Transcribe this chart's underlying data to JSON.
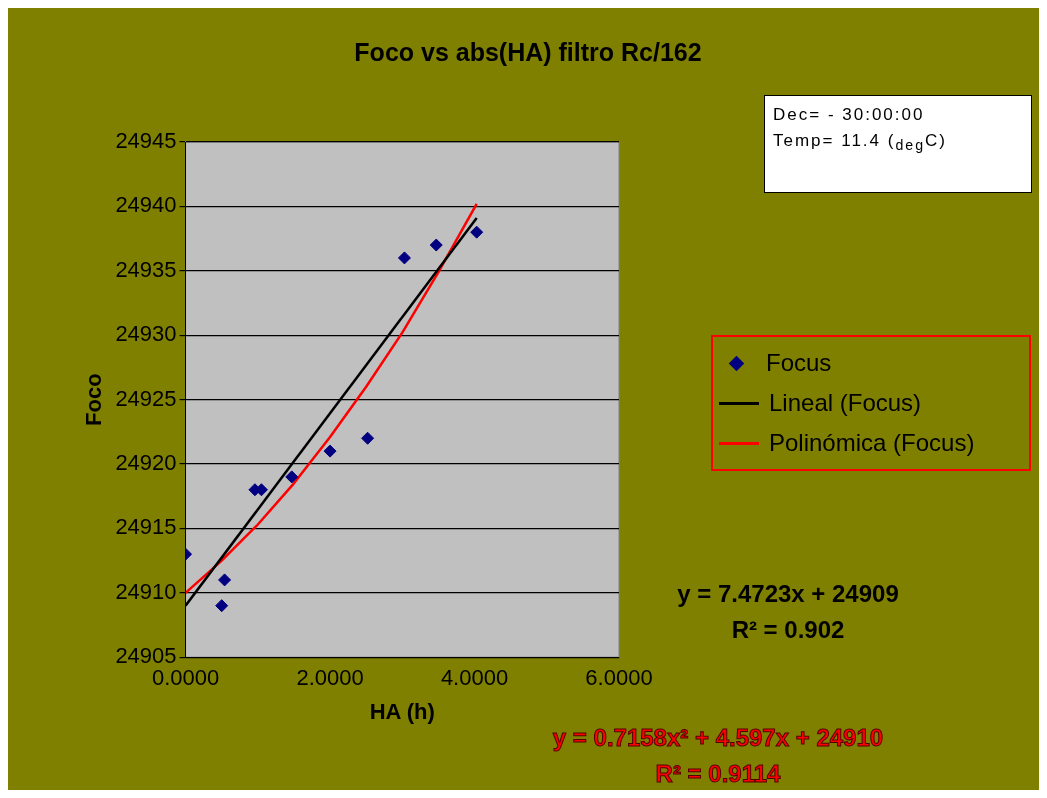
{
  "chart_data": {
    "type": "scatter",
    "title": "Foco vs abs(HA) filtro Rc/162",
    "xlabel": "HA (h)",
    "ylabel": "Foco",
    "xlim": [
      0,
      6
    ],
    "xticks": [
      {
        "value": 0,
        "label": "0.0000"
      },
      {
        "value": 2,
        "label": "2.0000"
      },
      {
        "value": 4,
        "label": "4.0000"
      },
      {
        "value": 6,
        "label": "6.0000"
      }
    ],
    "ylim": [
      24905,
      24945
    ],
    "yticks": [
      24905,
      24910,
      24915,
      24920,
      24925,
      24930,
      24935,
      24940,
      24945
    ],
    "grid": "y",
    "legend": "right",
    "series": [
      {
        "name": "Focus",
        "marker": "diamond",
        "color": "#000080",
        "x": [
          0,
          0.54,
          0.5,
          0.96,
          1.05,
          1.47,
          2.0,
          2.52,
          3.03,
          3.47,
          4.03
        ],
        "values": [
          24913,
          24911,
          24909,
          24918,
          24918,
          24919,
          24921,
          24922,
          24936,
          24937,
          24938
        ]
      },
      {
        "name": "Lineal (Focus)",
        "type": "line",
        "marker": "none",
        "color": "#000000",
        "x": [
          0,
          4.03
        ],
        "values": [
          24909,
          24939.1
        ]
      },
      {
        "name": "Polinómica (Focus)",
        "type": "line",
        "marker": "none",
        "color": "#ff0000",
        "x": [
          0,
          0.5,
          1,
          1.5,
          2,
          2.5,
          3,
          3.5,
          4.03
        ],
        "values": [
          24910,
          24912.5,
          24915.3,
          24918.5,
          24922.1,
          24926,
          24930.2,
          24934.9,
          24940.2
        ]
      }
    ],
    "annotations": [
      "Dec= - 30:00:00",
      "Temp= 11.4 ($_{deg}$C)",
      "y = 7.4723x + 24909",
      "R² = 0.902",
      "y = 0.7158x² + 4.597x + 24910",
      "R² = 0.9114"
    ]
  }
}
